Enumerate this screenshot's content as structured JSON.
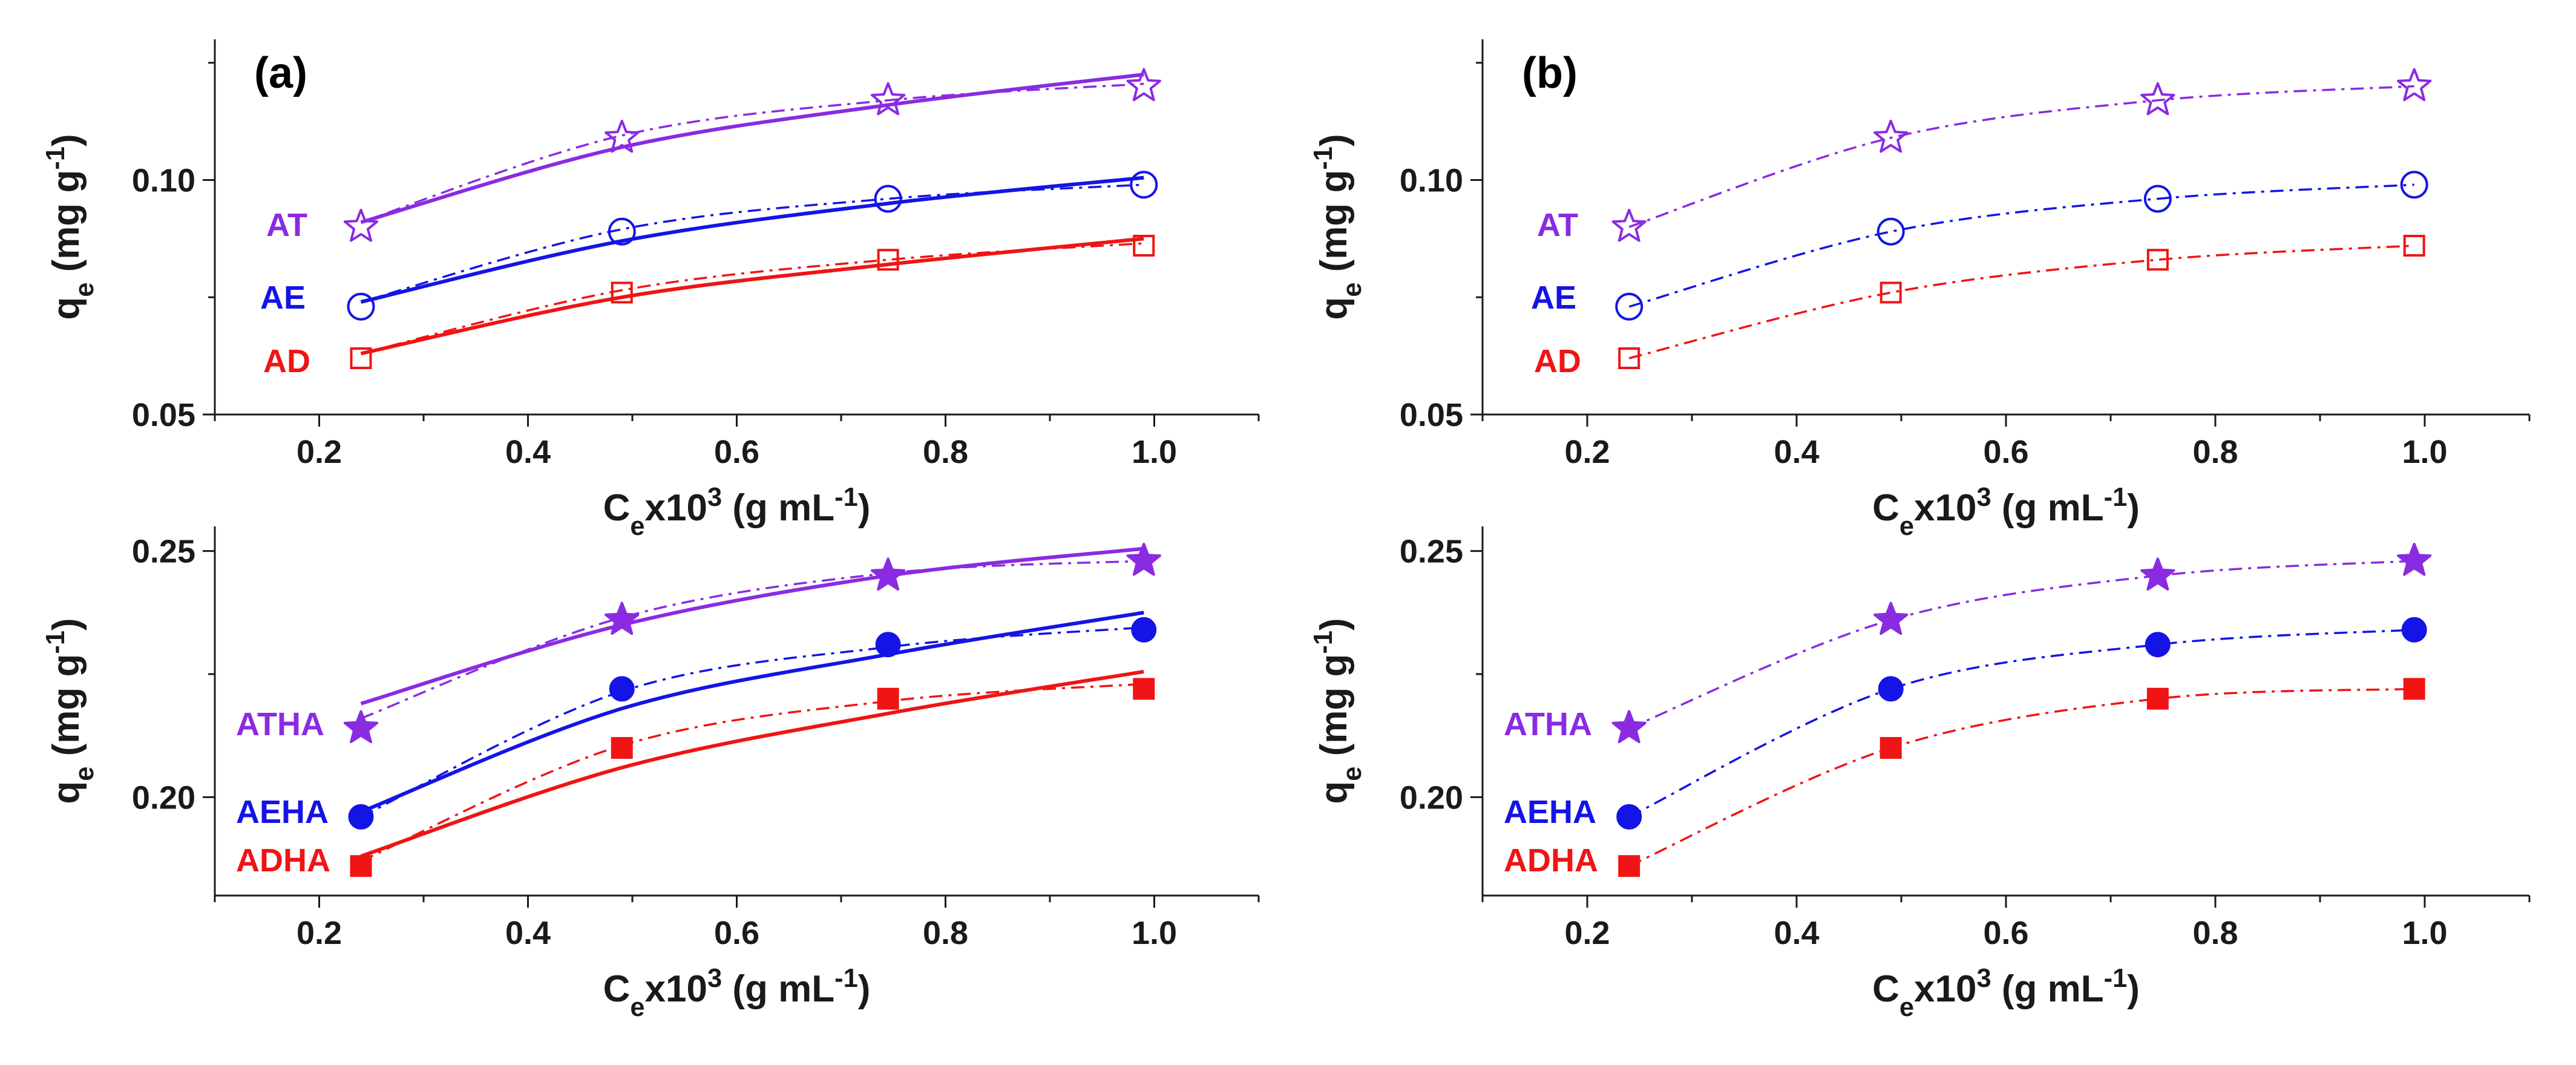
{
  "colors": {
    "violet": "#8a2be2",
    "blue": "#1414e6",
    "red": "#f01414",
    "axis": "#1a1a1a"
  },
  "chart_data": [
    {
      "id": "a-top",
      "type": "scatter",
      "panel_label": "(a)",
      "xlabel": {
        "base": "C",
        "sub": "e",
        "mid": "x10",
        "sup": "3",
        "tail": " (g mL",
        "sup2": "-1",
        "end": ")"
      },
      "ylabel": {
        "base": "q",
        "sub": "e",
        "tail": " (mg g",
        "sup": "-1",
        "end": ")"
      },
      "xlim": [
        0.1,
        1.1
      ],
      "ylim": [
        0.05,
        0.13
      ],
      "xticks": [
        "0.2",
        "0.4",
        "0.6",
        "0.8",
        "1.0"
      ],
      "yticks": [
        "0.05",
        "0.10"
      ],
      "x": [
        0.24,
        0.49,
        0.745,
        0.99
      ],
      "series": [
        {
          "name": "AT",
          "color": "violet",
          "marker": "star-open",
          "values": [
            0.09,
            0.109,
            0.117,
            0.12
          ],
          "fit_solid": [
            0.091,
            0.107,
            0.116,
            0.1225
          ],
          "fit_dash": [
            0.091,
            0.1095,
            0.117,
            0.1205
          ]
        },
        {
          "name": "AE",
          "color": "blue",
          "marker": "circle-open",
          "values": [
            0.073,
            0.089,
            0.096,
            0.099
          ],
          "fit_solid": [
            0.074,
            0.087,
            0.095,
            0.1005
          ],
          "fit_dash": [
            0.074,
            0.0895,
            0.096,
            0.099
          ]
        },
        {
          "name": "AD",
          "color": "red",
          "marker": "square-open",
          "values": [
            0.062,
            0.076,
            0.083,
            0.086
          ],
          "fit_solid": [
            0.063,
            0.075,
            0.082,
            0.0875
          ],
          "fit_dash": [
            0.063,
            0.0765,
            0.083,
            0.0865
          ]
        }
      ]
    },
    {
      "id": "b-top",
      "type": "scatter",
      "panel_label": "(b)",
      "xlabel": {
        "base": "C",
        "sub": "e",
        "mid": "x10",
        "sup": "3",
        "tail": " (g mL",
        "sup2": "-1",
        "end": ")"
      },
      "ylabel": {
        "base": "q",
        "sub": "e",
        "tail": " (mg g",
        "sup": "-1",
        "end": ")"
      },
      "xlim": [
        0.1,
        1.1
      ],
      "ylim": [
        0.05,
        0.13
      ],
      "xticks": [
        "0.2",
        "0.4",
        "0.6",
        "0.8",
        "1.0"
      ],
      "yticks": [
        "0.05",
        "0.10"
      ],
      "x": [
        0.24,
        0.49,
        0.745,
        0.99
      ],
      "series": [
        {
          "name": "AT",
          "color": "violet",
          "marker": "star-open",
          "values": [
            0.09,
            0.109,
            0.117,
            0.12
          ],
          "fit_dash": [
            0.09,
            0.109,
            0.117,
            0.12
          ]
        },
        {
          "name": "AE",
          "color": "blue",
          "marker": "circle-open",
          "values": [
            0.073,
            0.089,
            0.096,
            0.099
          ],
          "fit_dash": [
            0.073,
            0.089,
            0.096,
            0.099
          ]
        },
        {
          "name": "AD",
          "color": "red",
          "marker": "square-open",
          "values": [
            0.062,
            0.076,
            0.083,
            0.086
          ],
          "fit_dash": [
            0.062,
            0.076,
            0.083,
            0.086
          ]
        }
      ]
    },
    {
      "id": "a-bottom",
      "type": "scatter",
      "panel_label": "",
      "xlabel": {
        "base": "C",
        "sub": "e",
        "mid": "x10",
        "sup": "3",
        "tail": " (g mL",
        "sup2": "-1",
        "end": ")"
      },
      "ylabel": {
        "base": "q",
        "sub": "e",
        "tail": " (mg g",
        "sup": "-1",
        "end": ")"
      },
      "xlim": [
        0.1,
        1.1
      ],
      "ylim": [
        0.18,
        0.255
      ],
      "xticks": [
        "0.2",
        "0.4",
        "0.6",
        "0.8",
        "1.0"
      ],
      "yticks": [
        "0.20",
        "0.25"
      ],
      "x": [
        0.24,
        0.49,
        0.745,
        0.99
      ],
      "series": [
        {
          "name": "ATHA",
          "color": "violet",
          "marker": "star-filled",
          "values": [
            0.214,
            0.236,
            0.245,
            0.248
          ],
          "fit_solid": [
            0.219,
            0.235,
            0.245,
            0.2505
          ],
          "fit_dash": [
            0.216,
            0.2365,
            0.2455,
            0.248
          ]
        },
        {
          "name": "AEHA",
          "color": "blue",
          "marker": "circle-filled",
          "values": [
            0.196,
            0.222,
            0.231,
            0.234
          ],
          "fit_solid": [
            0.197,
            0.218,
            0.229,
            0.2375
          ],
          "fit_dash": [
            0.196,
            0.2215,
            0.2305,
            0.2345
          ]
        },
        {
          "name": "ADHA",
          "color": "red",
          "marker": "square-filled",
          "values": [
            0.186,
            0.21,
            0.22,
            0.222
          ],
          "fit_solid": [
            0.188,
            0.206,
            0.217,
            0.2255
          ],
          "fit_dash": [
            0.187,
            0.2105,
            0.2195,
            0.223
          ]
        }
      ]
    },
    {
      "id": "b-bottom",
      "type": "scatter",
      "panel_label": "",
      "xlabel": {
        "base": "C",
        "sub": "e",
        "mid": "x10",
        "sup": "3",
        "tail": " (g mL",
        "sup2": "-1",
        "end": ")"
      },
      "ylabel": {
        "base": "q",
        "sub": "e",
        "tail": " (mg g",
        "sup": "-1",
        "end": ")"
      },
      "xlim": [
        0.1,
        1.1
      ],
      "ylim": [
        0.18,
        0.255
      ],
      "xticks": [
        "0.2",
        "0.4",
        "0.6",
        "0.8",
        "1.0"
      ],
      "yticks": [
        "0.20",
        "0.25"
      ],
      "x": [
        0.24,
        0.49,
        0.745,
        0.99
      ],
      "series": [
        {
          "name": "ATHA",
          "color": "violet",
          "marker": "star-filled",
          "values": [
            0.214,
            0.236,
            0.245,
            0.248
          ],
          "fit_dash": [
            0.214,
            0.236,
            0.245,
            0.248
          ]
        },
        {
          "name": "AEHA",
          "color": "blue",
          "marker": "circle-filled",
          "values": [
            0.196,
            0.222,
            0.231,
            0.234
          ],
          "fit_dash": [
            0.196,
            0.222,
            0.231,
            0.234
          ]
        },
        {
          "name": "ADHA",
          "color": "red",
          "marker": "square-filled",
          "values": [
            0.186,
            0.21,
            0.22,
            0.222
          ],
          "fit_dash": [
            0.186,
            0.21,
            0.22,
            0.222
          ]
        }
      ]
    }
  ]
}
